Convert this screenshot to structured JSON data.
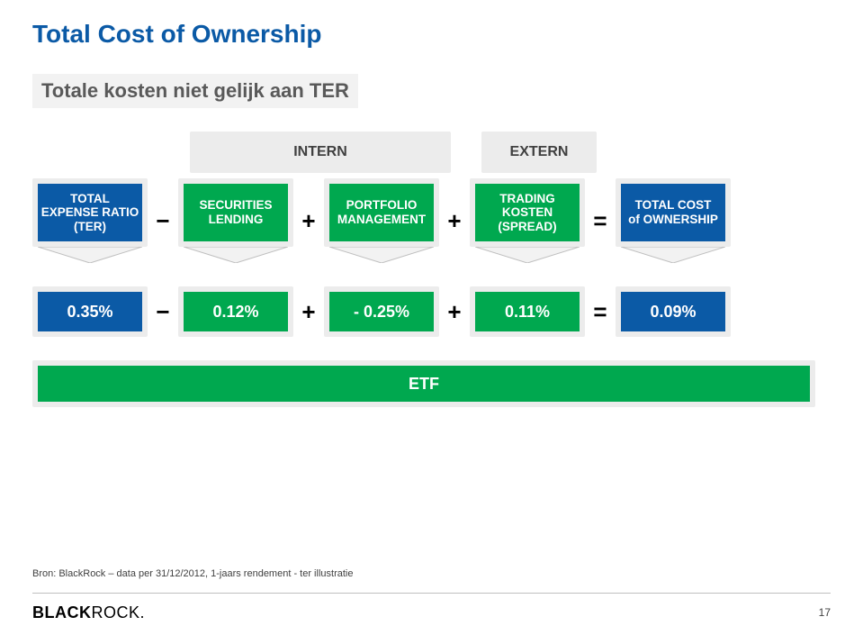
{
  "title": {
    "text": "Total Cost of Ownership",
    "color": "#0b5aa6",
    "fontsize": 28
  },
  "subtitle": {
    "text": "Totale kosten niet gelijk aan TER",
    "bg": "#f2f2f2",
    "color": "#595959",
    "fontsize": 22
  },
  "colors": {
    "blue": "#0b5aa6",
    "green": "#00a84f",
    "grey_frame": "#ececec",
    "arrow_fill": "#f2f2f2",
    "arrow_stroke": "#bfbfbf",
    "divider": "#bfbfbf",
    "page_bg": "#ffffff"
  },
  "row_labels": {
    "intern": "INTERN",
    "extern": "EXTERN"
  },
  "equation_boxes": [
    {
      "key": "ter",
      "lines": [
        "TOTAL",
        "EXPENSE RATIO",
        "(TER)"
      ],
      "bg": "#0b5aa6"
    },
    {
      "key": "op1",
      "op": "−"
    },
    {
      "key": "sl",
      "lines": [
        "SECURITIES",
        "LENDING"
      ],
      "bg": "#00a84f"
    },
    {
      "key": "op2",
      "op": "+"
    },
    {
      "key": "pm",
      "lines": [
        "PORTFOLIO",
        "MANAGEMENT"
      ],
      "bg": "#00a84f"
    },
    {
      "key": "op3",
      "op": "+"
    },
    {
      "key": "tk",
      "lines": [
        "TRADING KOSTEN",
        "(SPREAD)"
      ],
      "bg": "#00a84f"
    },
    {
      "key": "op4",
      "op": "="
    },
    {
      "key": "tco",
      "lines": [
        "TOTAL COST",
        "of OWNERSHIP"
      ],
      "bg": "#0b5aa6"
    }
  ],
  "equation_values": [
    {
      "key": "v_ter",
      "text": "0.35%",
      "bg": "#0b5aa6"
    },
    {
      "key": "vop1",
      "op": "−"
    },
    {
      "key": "v_sl",
      "text": "0.12%",
      "bg": "#00a84f"
    },
    {
      "key": "vop2",
      "op": "+"
    },
    {
      "key": "v_pm",
      "text": "- 0.25%",
      "bg": "#00a84f"
    },
    {
      "key": "vop3",
      "op": "+"
    },
    {
      "key": "v_tk",
      "text": "0.11%",
      "bg": "#00a84f"
    },
    {
      "key": "vop4",
      "op": "="
    },
    {
      "key": "v_tco",
      "text": "0.09%",
      "bg": "#0b5aa6"
    }
  ],
  "arrow": {
    "fill": "#f2f2f2",
    "stroke": "#bfbfbf",
    "width": 116,
    "height": 18
  },
  "etf": {
    "label": "ETF",
    "bg": "#00a84f"
  },
  "footnote": "Bron: BlackRock – data per 31/12/2012, 1-jaars rendement - ter illustratie",
  "logo": {
    "part1": "BLACK",
    "part2": "ROCK",
    "suffix": "."
  },
  "page_number": "17"
}
